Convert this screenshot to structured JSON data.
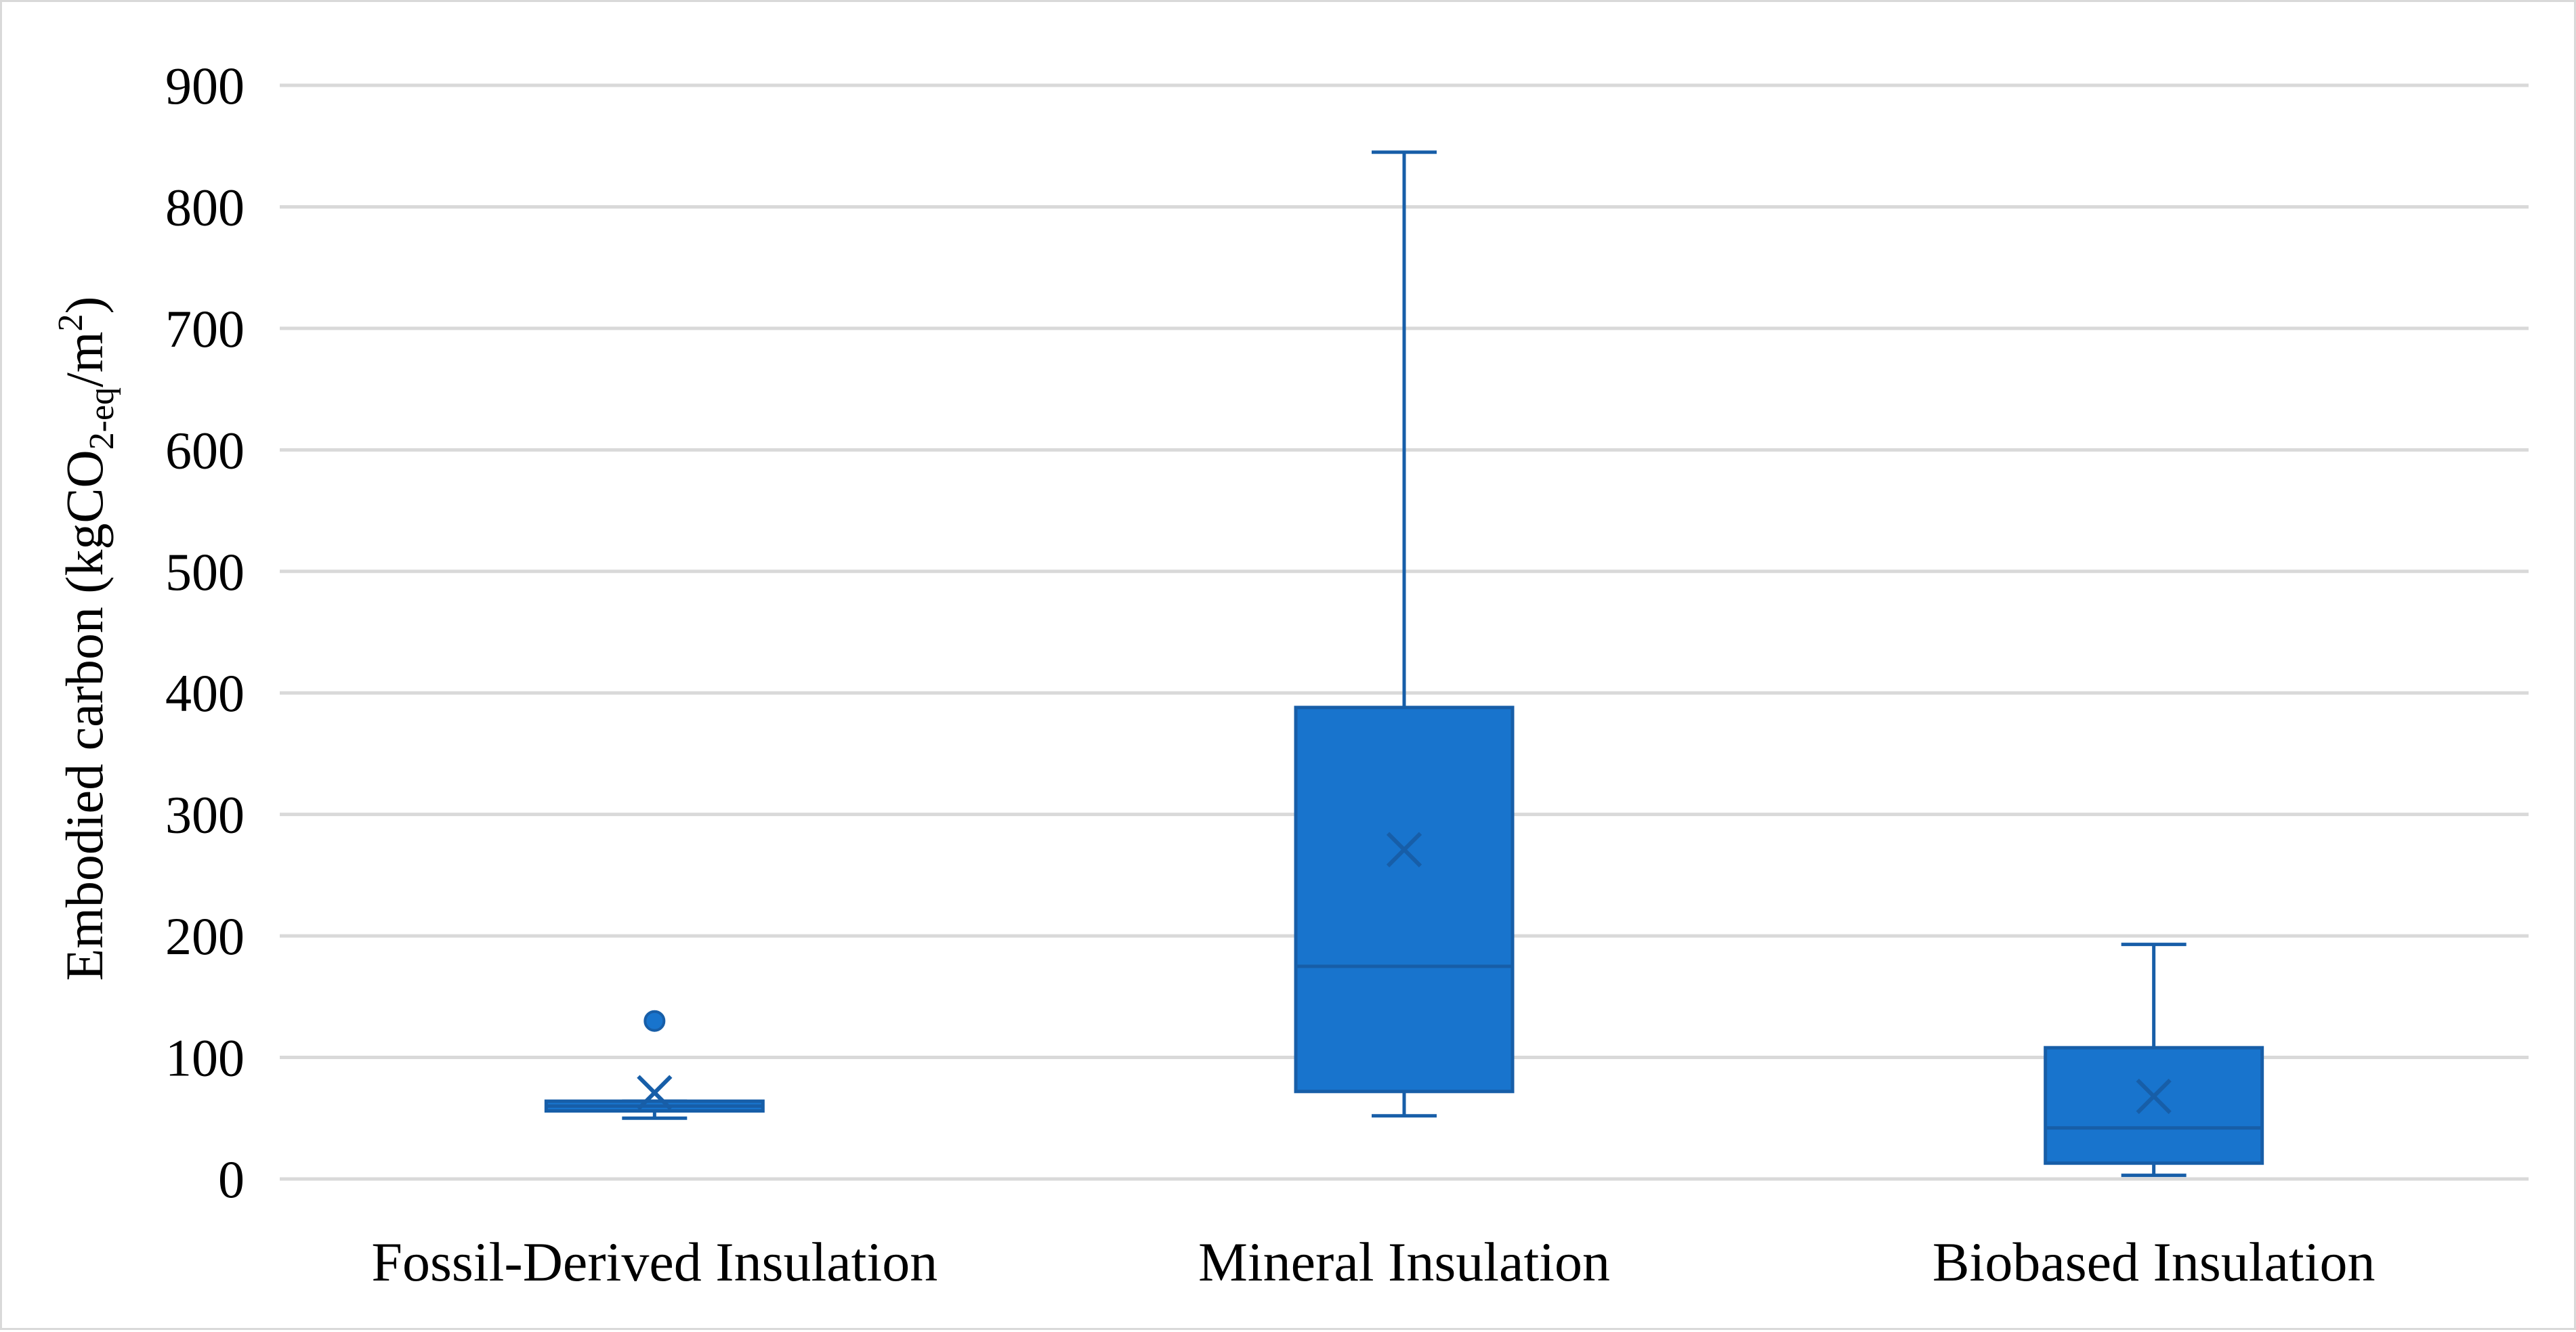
{
  "chart_data": {
    "type": "boxplot",
    "title": "",
    "xlabel": "",
    "ylabel": {
      "prefix": "Embodied carbon (kgCO",
      "sub": "2-eq",
      "mid": "/m",
      "sup": "2",
      "suffix": ")"
    },
    "ylim": [
      0,
      900
    ],
    "yticks": [
      0,
      100,
      200,
      300,
      400,
      500,
      600,
      700,
      800,
      900
    ],
    "grid": true,
    "legend": "none",
    "categories": [
      "Fossil-Derived Insulation",
      "Mineral Insulation",
      "Biobased Insulation"
    ],
    "boxes": [
      {
        "whisker_low": 50,
        "q1": 56,
        "median": 60,
        "q3": 64,
        "whisker_high": 64,
        "mean": 71,
        "outliers": [
          130
        ]
      },
      {
        "whisker_low": 52,
        "q1": 72,
        "median": 175,
        "q3": 388,
        "whisker_high": 845,
        "mean": 271,
        "outliers": []
      },
      {
        "whisker_low": 3,
        "q1": 13,
        "median": 42,
        "q3": 108,
        "whisker_high": 193,
        "mean": 68,
        "outliers": []
      }
    ],
    "colors": {
      "box_fill": "#1874cd",
      "box_stroke": "#175ea8",
      "whisker": "#175ea8",
      "grid": "#d9d9d9",
      "axis": "#d9d9d9"
    }
  }
}
